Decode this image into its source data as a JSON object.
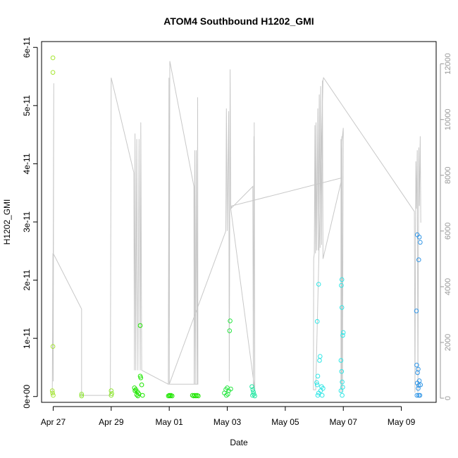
{
  "chart_data": {
    "type": "scatter",
    "title": "ATOM4 Southbound H1202_GMI",
    "xlabel": "Date",
    "ylabel": "H1202_GMI",
    "x_tick_labels": [
      "Apr 27",
      "Apr 29",
      "May 01",
      "May 03",
      "May 05",
      "May 07",
      "May 09"
    ],
    "x_tick_days": [
      27,
      29,
      31,
      33,
      35,
      37,
      39
    ],
    "xlim_days": [
      26.6,
      40.2
    ],
    "y_tick_labels": [
      "0e+00",
      "1e-11",
      "2e-11",
      "3e-11",
      "4e-11",
      "5e-11",
      "6e-11"
    ],
    "y_tick_values": [
      0,
      1e-11,
      2e-11,
      3e-11,
      4e-11,
      5e-11,
      6e-11
    ],
    "ylim": [
      -1e-12,
      6.1e-11
    ],
    "y2_tick_labels": [
      "0",
      "2000",
      "4000",
      "6000",
      "8000",
      "10000",
      "12000"
    ],
    "y2_tick_values": [
      0,
      2000,
      4000,
      6000,
      8000,
      10000,
      12000
    ],
    "y2lim": [
      -150,
      12800
    ],
    "point_colors": [
      "#a6e632",
      "#8fe632",
      "#1ee600",
      "#26e640",
      "#1ee6a0",
      "#32e6e6",
      "#3296e6"
    ],
    "points": [
      {
        "x": 26.99,
        "y": 5.82e-11,
        "c": 0
      },
      {
        "x": 26.99,
        "y": 5.57e-11,
        "c": 0
      },
      {
        "x": 26.99,
        "y": 8.6e-12,
        "c": 0
      },
      {
        "x": 26.97,
        "y": 1e-12,
        "c": 0
      },
      {
        "x": 26.98,
        "y": 6e-13,
        "c": 0
      },
      {
        "x": 27.0,
        "y": 2e-13,
        "c": 0
      },
      {
        "x": 27.98,
        "y": 4e-13,
        "c": 1
      },
      {
        "x": 27.98,
        "y": 1e-13,
        "c": 1
      },
      {
        "x": 29.0,
        "y": 1e-12,
        "c": 1
      },
      {
        "x": 29.02,
        "y": 5e-13,
        "c": 1
      },
      {
        "x": 29.0,
        "y": 2e-13,
        "c": 1
      },
      {
        "x": 29.8,
        "y": 1.5e-12,
        "c": 2
      },
      {
        "x": 29.85,
        "y": 1.2e-12,
        "c": 2
      },
      {
        "x": 29.9,
        "y": 8e-13,
        "c": 2
      },
      {
        "x": 29.95,
        "y": 5e-13,
        "c": 2
      },
      {
        "x": 29.88,
        "y": 3e-13,
        "c": 2
      },
      {
        "x": 29.92,
        "y": 1e-13,
        "c": 2
      },
      {
        "x": 30.0,
        "y": 3.5e-12,
        "c": 2
      },
      {
        "x": 30.02,
        "y": 3.2e-12,
        "c": 2
      },
      {
        "x": 30.05,
        "y": 2e-12,
        "c": 2
      },
      {
        "x": 30.0,
        "y": 1.22e-11,
        "c": 2
      },
      {
        "x": 30.08,
        "y": 2e-13,
        "c": 2
      },
      {
        "x": 29.82,
        "y": 1e-12,
        "c": 2
      },
      {
        "x": 31.0,
        "y": 2e-13,
        "c": 2
      },
      {
        "x": 31.03,
        "y": 1e-13,
        "c": 2
      },
      {
        "x": 31.06,
        "y": 2e-13,
        "c": 2
      },
      {
        "x": 31.1,
        "y": 1e-13,
        "c": 2
      },
      {
        "x": 30.97,
        "y": 1e-13,
        "c": 2
      },
      {
        "x": 31.8,
        "y": 2e-13,
        "c": 2
      },
      {
        "x": 31.84,
        "y": 1e-13,
        "c": 2
      },
      {
        "x": 31.88,
        "y": 2e-13,
        "c": 2
      },
      {
        "x": 31.92,
        "y": 1e-13,
        "c": 2
      },
      {
        "x": 31.96,
        "y": 2e-13,
        "c": 2
      },
      {
        "x": 32.0,
        "y": 1e-13,
        "c": 2
      },
      {
        "x": 32.9,
        "y": 6e-13,
        "c": 3
      },
      {
        "x": 32.95,
        "y": 1.2e-12,
        "c": 3
      },
      {
        "x": 33.0,
        "y": 1.5e-12,
        "c": 3
      },
      {
        "x": 33.05,
        "y": 1e-12,
        "c": 3
      },
      {
        "x": 33.1,
        "y": 1.3e-11,
        "c": 3
      },
      {
        "x": 33.08,
        "y": 1.13e-11,
        "c": 3
      },
      {
        "x": 33.12,
        "y": 1.3e-12,
        "c": 3
      },
      {
        "x": 33.02,
        "y": 4e-13,
        "c": 3
      },
      {
        "x": 32.97,
        "y": 2e-13,
        "c": 3
      },
      {
        "x": 33.85,
        "y": 1.7e-12,
        "c": 4
      },
      {
        "x": 33.88,
        "y": 1.2e-12,
        "c": 4
      },
      {
        "x": 33.9,
        "y": 8e-13,
        "c": 4
      },
      {
        "x": 33.92,
        "y": 4e-13,
        "c": 4
      },
      {
        "x": 33.95,
        "y": 1e-13,
        "c": 4
      },
      {
        "x": 33.87,
        "y": 2e-13,
        "c": 4
      },
      {
        "x": 36.1,
        "y": 1.29e-11,
        "c": 5
      },
      {
        "x": 36.15,
        "y": 1.93e-11,
        "c": 5
      },
      {
        "x": 36.2,
        "y": 6.9e-12,
        "c": 5
      },
      {
        "x": 36.18,
        "y": 6.2e-12,
        "c": 5
      },
      {
        "x": 36.12,
        "y": 3.5e-12,
        "c": 5
      },
      {
        "x": 36.08,
        "y": 2.4e-12,
        "c": 5
      },
      {
        "x": 36.1,
        "y": 2e-12,
        "c": 5
      },
      {
        "x": 36.25,
        "y": 1.7e-12,
        "c": 5
      },
      {
        "x": 36.3,
        "y": 1.4e-12,
        "c": 5
      },
      {
        "x": 36.22,
        "y": 1e-12,
        "c": 5
      },
      {
        "x": 36.15,
        "y": 6e-13,
        "c": 5
      },
      {
        "x": 36.12,
        "y": 2e-13,
        "c": 5
      },
      {
        "x": 36.27,
        "y": 2e-13,
        "c": 5
      },
      {
        "x": 36.95,
        "y": 2.01e-11,
        "c": 5
      },
      {
        "x": 36.93,
        "y": 1.91e-11,
        "c": 5
      },
      {
        "x": 36.95,
        "y": 1.53e-11,
        "c": 5
      },
      {
        "x": 37.0,
        "y": 1.1e-11,
        "c": 5
      },
      {
        "x": 36.98,
        "y": 1.05e-11,
        "c": 5
      },
      {
        "x": 36.92,
        "y": 6.2e-12,
        "c": 5
      },
      {
        "x": 36.94,
        "y": 4.3e-12,
        "c": 5
      },
      {
        "x": 36.96,
        "y": 2.5e-12,
        "c": 5
      },
      {
        "x": 36.98,
        "y": 1.6e-12,
        "c": 5
      },
      {
        "x": 36.92,
        "y": 1e-12,
        "c": 5
      },
      {
        "x": 36.96,
        "y": 2e-13,
        "c": 5
      },
      {
        "x": 39.55,
        "y": 2.78e-11,
        "c": 6
      },
      {
        "x": 39.62,
        "y": 2.74e-11,
        "c": 6
      },
      {
        "x": 39.65,
        "y": 2.65e-11,
        "c": 6
      },
      {
        "x": 39.6,
        "y": 2.35e-11,
        "c": 6
      },
      {
        "x": 39.52,
        "y": 1.47e-11,
        "c": 6
      },
      {
        "x": 39.53,
        "y": 5.4e-12,
        "c": 6
      },
      {
        "x": 39.58,
        "y": 4.7e-12,
        "c": 6
      },
      {
        "x": 39.56,
        "y": 4.1e-12,
        "c": 6
      },
      {
        "x": 39.55,
        "y": 2.3e-12,
        "c": 6
      },
      {
        "x": 39.62,
        "y": 2.7e-12,
        "c": 6
      },
      {
        "x": 39.6,
        "y": 1.9e-12,
        "c": 6
      },
      {
        "x": 39.66,
        "y": 2e-12,
        "c": 6
      },
      {
        "x": 39.58,
        "y": 1.4e-12,
        "c": 6
      },
      {
        "x": 39.54,
        "y": 2e-13,
        "c": 6
      },
      {
        "x": 39.6,
        "y": 2e-13,
        "c": 6
      },
      {
        "x": 39.64,
        "y": 2e-13,
        "c": 6
      }
    ],
    "altitude_series": [
      [
        26.97,
        120
      ],
      [
        26.99,
        5200
      ],
      [
        27.0,
        600
      ],
      [
        27.02,
        11300
      ],
      [
        27.0,
        5200
      ],
      [
        27.98,
        3200
      ],
      [
        27.98,
        100
      ],
      [
        28.97,
        100
      ],
      [
        29.0,
        11500
      ],
      [
        29.78,
        8100
      ],
      [
        29.8,
        1000
      ],
      [
        29.82,
        9500
      ],
      [
        29.85,
        1000
      ],
      [
        29.88,
        9300
      ],
      [
        29.92,
        1000
      ],
      [
        29.96,
        9300
      ],
      [
        30.0,
        1000
      ],
      [
        30.02,
        9900
      ],
      [
        30.05,
        1000
      ],
      [
        30.97,
        500
      ],
      [
        30.99,
        11500
      ],
      [
        31.0,
        500
      ],
      [
        31.02,
        12100
      ],
      [
        31.85,
        7600
      ],
      [
        31.86,
        500
      ],
      [
        31.88,
        8900
      ],
      [
        31.9,
        500
      ],
      [
        31.93,
        8900
      ],
      [
        31.96,
        500
      ],
      [
        31.98,
        10800
      ],
      [
        31.99,
        500
      ],
      [
        31.0,
        500
      ],
      [
        32.95,
        6000
      ],
      [
        32.97,
        10400
      ],
      [
        33.0,
        6000
      ],
      [
        33.05,
        10300
      ],
      [
        33.07,
        600
      ],
      [
        33.1,
        11800
      ],
      [
        33.12,
        6800
      ],
      [
        33.88,
        7600
      ],
      [
        33.9,
        300
      ],
      [
        33.92,
        9400
      ],
      [
        33.95,
        600
      ],
      [
        33.93,
        9900
      ],
      [
        33.95,
        300
      ],
      [
        33.12,
        6800
      ],
      [
        33.15,
        6900
      ],
      [
        36.92,
        7900
      ],
      [
        36.95,
        9200
      ],
      [
        37.0,
        9700
      ],
      [
        36.97,
        200
      ],
      [
        36.95,
        9000
      ],
      [
        36.92,
        200
      ],
      [
        36.92,
        9300
      ],
      [
        36.94,
        300
      ],
      [
        36.95,
        9400
      ],
      [
        36.93,
        7800
      ],
      [
        36.3,
        5000
      ],
      [
        36.28,
        11400
      ],
      [
        36.25,
        5500
      ],
      [
        36.22,
        11200
      ],
      [
        36.2,
        5400
      ],
      [
        36.17,
        10900
      ],
      [
        36.14,
        5300
      ],
      [
        36.12,
        10400
      ],
      [
        36.08,
        5300
      ],
      [
        36.06,
        9900
      ],
      [
        36.04,
        5200
      ],
      [
        36.02,
        9800
      ],
      [
        36.0,
        5200
      ],
      [
        35.98,
        5000
      ],
      [
        35.97,
        300
      ],
      [
        36.05,
        300
      ],
      [
        36.3,
        11400
      ],
      [
        36.32,
        11500
      ],
      [
        39.45,
        6700
      ],
      [
        39.47,
        200
      ],
      [
        39.5,
        8500
      ],
      [
        39.52,
        6800
      ],
      [
        39.55,
        8900
      ],
      [
        39.57,
        200
      ],
      [
        39.6,
        9000
      ],
      [
        39.62,
        6900
      ],
      [
        39.65,
        9400
      ],
      [
        39.67,
        6300
      ]
    ],
    "grid": false,
    "legend": "none"
  }
}
